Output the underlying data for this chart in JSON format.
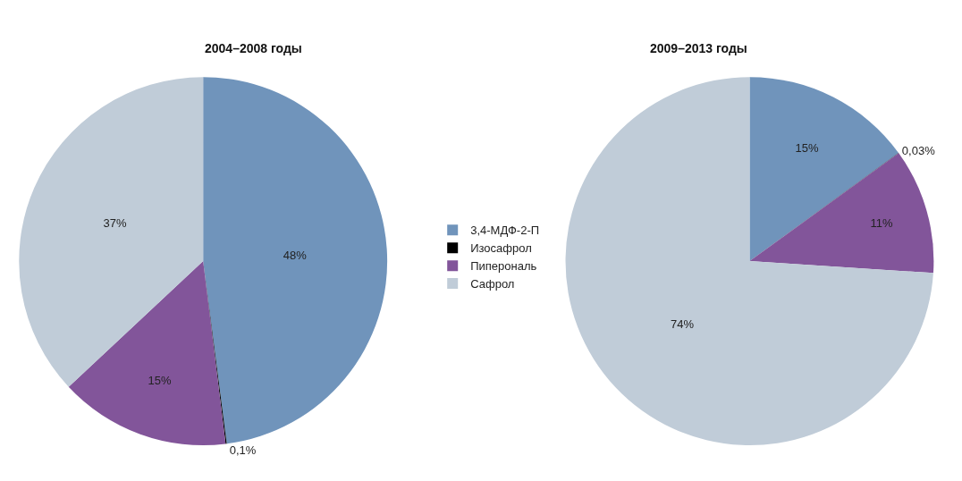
{
  "chart_data": [
    {
      "type": "pie",
      "title": "2004–2008 годы",
      "categories": [
        "3,4-МДФ-2-П",
        "Изосафрол",
        "Пиперональ",
        "Сафрол"
      ],
      "values": [
        48,
        0.1,
        15,
        37
      ],
      "colors": [
        "#7094bb",
        "#000000",
        "#82559a",
        "#c0ccd8"
      ],
      "value_labels": [
        "48%",
        "0,1%",
        "15%",
        "37%"
      ],
      "legend": "right"
    },
    {
      "type": "pie",
      "title": "2009–2013 годы",
      "categories": [
        null,
        null,
        null,
        null
      ],
      "values": [
        15,
        0.03,
        11,
        74
      ],
      "colors": [
        "#7094bb",
        "#000000",
        "#82559a",
        "#c0ccd8"
      ],
      "value_labels": [
        "15%",
        "0,03%",
        "11%",
        "74%"
      ]
    }
  ]
}
